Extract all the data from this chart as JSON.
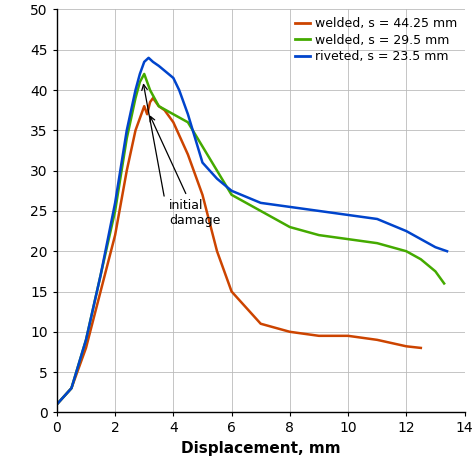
{
  "xlabel": "Displacement, mm",
  "xlim": [
    0,
    14
  ],
  "ylim": [
    0,
    50
  ],
  "xticks": [
    0,
    2,
    4,
    6,
    8,
    10,
    12,
    14
  ],
  "yticks": [
    0,
    5,
    10,
    15,
    20,
    25,
    30,
    35,
    40,
    45,
    50
  ],
  "orange_x": [
    0,
    0.5,
    1.0,
    1.5,
    2.0,
    2.4,
    2.7,
    2.9,
    3.0,
    3.1,
    3.2,
    3.3,
    3.5,
    3.7,
    4.0,
    4.5,
    5.0,
    5.5,
    6.0,
    6.5,
    7.0,
    8.0,
    9.0,
    10.0,
    11.0,
    12.0,
    12.5
  ],
  "orange_y": [
    1,
    3,
    8,
    15,
    22,
    30,
    35,
    37,
    38,
    37,
    38.5,
    39,
    38,
    37.5,
    36,
    32,
    27,
    20,
    15,
    13,
    11,
    10,
    9.5,
    9.5,
    9,
    8.2,
    8
  ],
  "green_x": [
    0,
    0.5,
    1.0,
    1.5,
    2.0,
    2.4,
    2.7,
    2.85,
    3.0,
    3.1,
    3.2,
    3.5,
    4.0,
    4.5,
    5.0,
    5.5,
    6.0,
    7.0,
    8.0,
    9.0,
    10.0,
    11.0,
    12.0,
    12.5,
    13.0,
    13.3
  ],
  "green_y": [
    1,
    3,
    9,
    17,
    25,
    34,
    39,
    41,
    42,
    41,
    40,
    38,
    37,
    36,
    33,
    30,
    27,
    25,
    23,
    22,
    21.5,
    21,
    20,
    19,
    17.5,
    16
  ],
  "blue_x": [
    0,
    0.5,
    1.0,
    1.5,
    2.0,
    2.4,
    2.7,
    2.85,
    3.0,
    3.15,
    3.3,
    3.5,
    4.0,
    4.2,
    4.5,
    5.0,
    5.5,
    6.0,
    7.0,
    8.0,
    9.0,
    10.0,
    11.0,
    12.0,
    12.5,
    13.0,
    13.4
  ],
  "blue_y": [
    1,
    3,
    9,
    17,
    26,
    35,
    40,
    42,
    43.5,
    44,
    43.5,
    43,
    41.5,
    40,
    37,
    31,
    29,
    27.5,
    26,
    25.5,
    25,
    24.5,
    24,
    22.5,
    21.5,
    20.5,
    20
  ],
  "orange_color": "#cc4400",
  "green_color": "#44aa00",
  "blue_color": "#0044cc",
  "orange_label": "welded, s = 44.25 mm",
  "green_label": "welded, s = 29.5 mm",
  "blue_label": "riveted, s = 23.5 mm",
  "annotation_text": "initial\ndamage",
  "background_color": "#ffffff",
  "grid_color": "#bbbbbb"
}
